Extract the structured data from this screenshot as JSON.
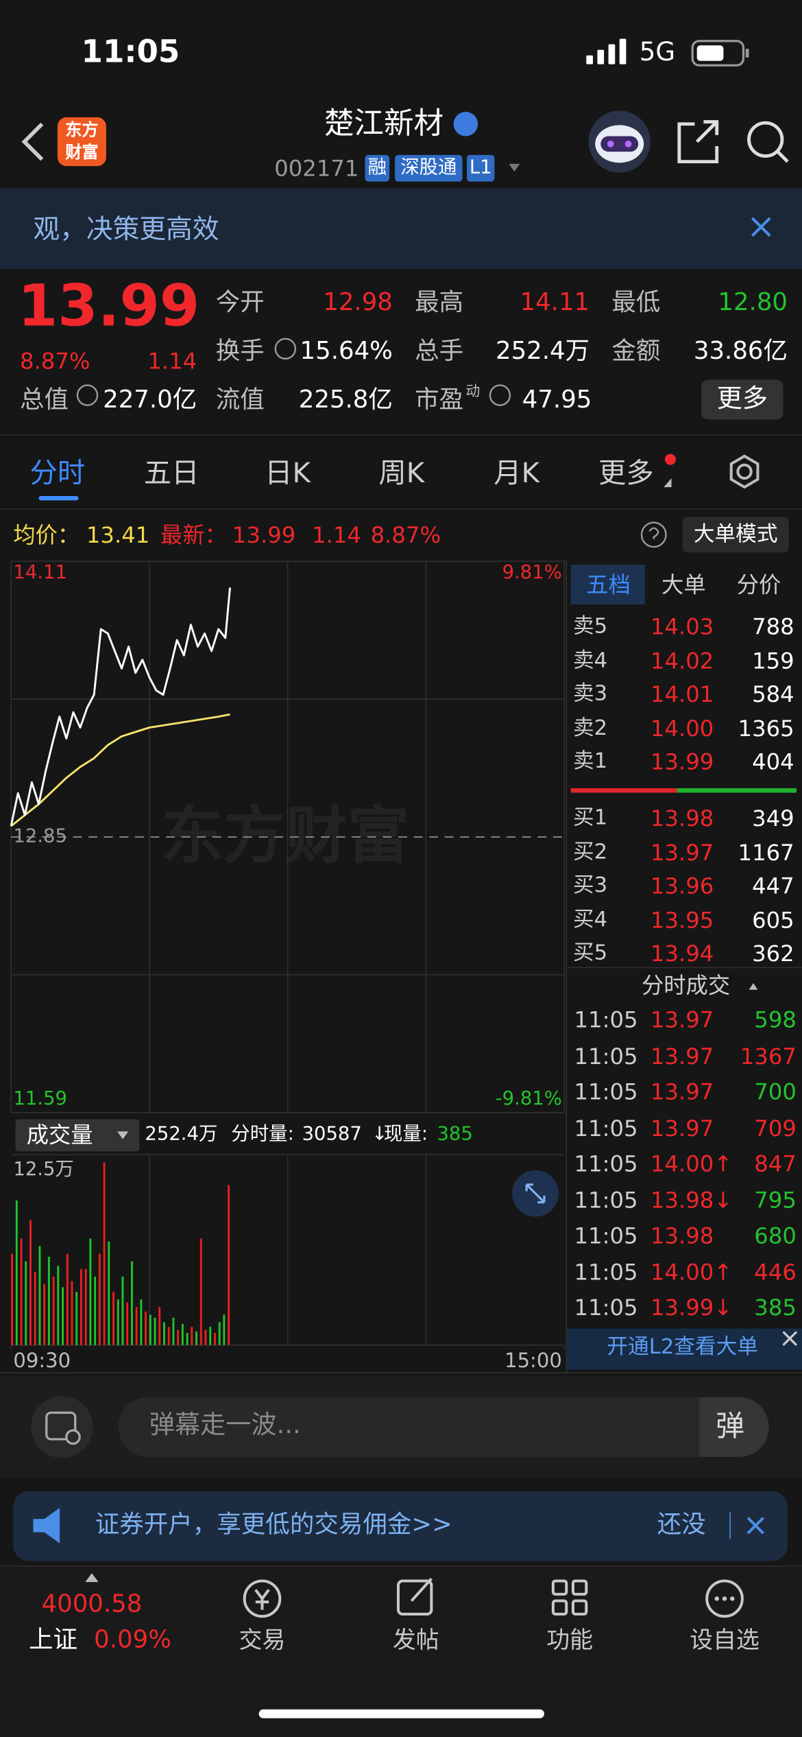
{
  "status_bar": {
    "time": "11:05",
    "network": "5G"
  },
  "header": {
    "logo_lines": [
      "东方",
      "财富"
    ],
    "title": "楚江新材",
    "code": "002171",
    "badges": [
      "融",
      "深股通",
      "L1"
    ]
  },
  "banner": {
    "text": "观，决策更高效"
  },
  "quote": {
    "price": "13.99",
    "change_pct": "8.87%",
    "change": "1.14",
    "fields": [
      {
        "label": "今开",
        "value": "12.98",
        "color": "#f0272b"
      },
      {
        "label": "最高",
        "value": "14.11",
        "color": "#f0272b"
      },
      {
        "label": "最低",
        "value": "12.80",
        "color": "#22c42d"
      },
      {
        "label": "换手",
        "value": "15.64%",
        "color": "#ffffff"
      },
      {
        "label": "总手",
        "value": "252.4万",
        "color": "#ffffff"
      },
      {
        "label": "金额",
        "value": "33.86亿",
        "color": "#ffffff"
      },
      {
        "label": "总值",
        "value": "227.0亿",
        "color": "#ffffff"
      },
      {
        "label": "流值",
        "value": "225.8亿",
        "color": "#ffffff"
      }
    ],
    "pe_label": "市盈",
    "pe_sup": "动",
    "pe_value": "47.95",
    "more": "更多"
  },
  "tabs": [
    "分时",
    "五日",
    "日K",
    "周K",
    "月K",
    "更多"
  ],
  "chart_info": {
    "avg": "13.41",
    "last": "13.99",
    "change": "1.14",
    "change_pct": "8.87%",
    "mode_button": "大单模式"
  },
  "chart_data": [
    {
      "type": "line",
      "watermark": "东方财富",
      "grid": true,
      "xlim": [
        0,
        240
      ],
      "ylim": [
        11.59,
        14.11
      ],
      "yticks": [
        14.11,
        12.85,
        11.59
      ],
      "y2lim": [
        -9.81,
        9.81
      ],
      "y2ticks": [
        {
          "value": 9.81,
          "label": "9.81%"
        },
        {
          "value": -9.81,
          "label": "-9.81%"
        }
      ],
      "series": [
        {
          "name": "最新：",
          "color": "#ffffff",
          "x": [
            0,
            3,
            6,
            9,
            12,
            15,
            18,
            21,
            24,
            27,
            30,
            33,
            36,
            39,
            42,
            45,
            48,
            51,
            54,
            57,
            60,
            63,
            66,
            69,
            72,
            75,
            78,
            81,
            84,
            87,
            90,
            93,
            95
          ],
          "values": [
            12.9,
            13.05,
            12.95,
            13.1,
            13.0,
            13.15,
            13.28,
            13.4,
            13.3,
            13.42,
            13.35,
            13.44,
            13.5,
            13.8,
            13.78,
            13.7,
            13.62,
            13.72,
            13.6,
            13.66,
            13.58,
            13.52,
            13.5,
            13.62,
            13.75,
            13.68,
            13.82,
            13.72,
            13.78,
            13.7,
            13.8,
            13.76,
            13.99
          ]
        },
        {
          "name": "均价：",
          "color": "#f5e36b",
          "x": [
            0,
            6,
            12,
            18,
            24,
            30,
            36,
            42,
            48,
            54,
            60,
            66,
            72,
            78,
            84,
            90,
            95
          ],
          "values": [
            12.9,
            12.95,
            13.0,
            13.06,
            13.12,
            13.17,
            13.21,
            13.27,
            13.31,
            13.33,
            13.35,
            13.36,
            13.37,
            13.38,
            13.39,
            13.4,
            13.41
          ]
        }
      ]
    },
    {
      "type": "bar",
      "xlim": [
        0,
        240
      ],
      "xticks": [
        {
          "value": 0,
          "label": "09:30"
        },
        {
          "value": 240,
          "label": "15:00"
        }
      ],
      "ylim": [
        0,
        125000
      ],
      "yticks": [
        {
          "value": 125000,
          "label": "12.5万"
        }
      ],
      "x": [
        0,
        2,
        4,
        6,
        8,
        10,
        12,
        14,
        16,
        18,
        20,
        22,
        24,
        26,
        28,
        30,
        32,
        34,
        36,
        38,
        40,
        42,
        44,
        46,
        48,
        50,
        52,
        54,
        56,
        58,
        60,
        62,
        64,
        66,
        68,
        70,
        72,
        74,
        76,
        78,
        80,
        82,
        84,
        86,
        88,
        90,
        92,
        94
      ],
      "values": [
        60000,
        95000,
        70000,
        55000,
        82000,
        48000,
        65000,
        40000,
        58000,
        45000,
        52000,
        38000,
        60000,
        42000,
        35000,
        50000,
        50000,
        70000,
        45000,
        60000,
        120000,
        68000,
        35000,
        30000,
        45000,
        28000,
        55000,
        25000,
        30000,
        22000,
        20000,
        18000,
        25000,
        15000,
        12000,
        18000,
        10000,
        14000,
        8000,
        12000,
        9000,
        70000,
        10000,
        12000,
        8000,
        15000,
        20000,
        105000
      ],
      "colors": [
        "#ea1e22",
        "#20c42a",
        "#ea1e22",
        "#20c42a",
        "#ea1e22",
        "#ea1e22",
        "#20c42a",
        "#ea1e22",
        "#20c42a",
        "#ea1e22",
        "#20c42a",
        "#20c42a",
        "#ea1e22",
        "#ea1e22",
        "#20c42a",
        "#ea1e22",
        "#ea1e22",
        "#20c42a",
        "#20c42a",
        "#ea1e22",
        "#ea1e22",
        "#20c42a",
        "#ea1e22",
        "#20c42a",
        "#20c42a",
        "#ea1e22",
        "#20c42a",
        "#ea1e22",
        "#20c42a",
        "#ea1e22",
        "#20c42a",
        "#20c42a",
        "#ea1e22",
        "#20c42a",
        "#ea1e22",
        "#20c42a",
        "#ea1e22",
        "#20c42a",
        "#20c42a",
        "#ea1e22",
        "#20c42a",
        "#ea1e22",
        "#ea1e22",
        "#20c42a",
        "#ea1e22",
        "#20c42a",
        "#20c42a",
        "#ea1e22"
      ]
    }
  ],
  "volume_info": {
    "selector": "成交量",
    "total": "252.4万",
    "minute_label": "分时量:",
    "minute_volume": 30587,
    "arrow": "↓",
    "current_label": "现量:",
    "current": 385
  },
  "order_book": {
    "tabs": [
      "五档",
      "大单",
      "分价"
    ],
    "asks": [
      {
        "label": "卖5",
        "price": "14.03",
        "qty": 788
      },
      {
        "label": "卖4",
        "price": "14.02",
        "qty": 159
      },
      {
        "label": "卖3",
        "price": "14.01",
        "qty": 584
      },
      {
        "label": "卖2",
        "price": "14.00",
        "qty": 1365
      },
      {
        "label": "卖1",
        "price": "13.99",
        "qty": 404
      }
    ],
    "bids": [
      {
        "label": "买1",
        "price": "13.98",
        "qty": 349
      },
      {
        "label": "买2",
        "price": "13.97",
        "qty": 1167
      },
      {
        "label": "买3",
        "price": "13.96",
        "qty": 447
      },
      {
        "label": "买4",
        "price": "13.95",
        "qty": 605
      },
      {
        "label": "买5",
        "price": "13.94",
        "qty": 362
      }
    ]
  },
  "trades": {
    "title": "分时成交",
    "l2_link": "开通L2查看大单",
    "rows": [
      {
        "time": "11:05",
        "price": "13.97",
        "qty": 598,
        "color": "#22c42d"
      },
      {
        "time": "11:05",
        "price": "13.97",
        "qty": 1367,
        "color": "#f0272b"
      },
      {
        "time": "11:05",
        "price": "13.97",
        "qty": 700,
        "color": "#22c42d"
      },
      {
        "time": "11:05",
        "price": "13.97",
        "qty": 709,
        "color": "#f0272b"
      },
      {
        "time": "11:05",
        "price": "14.00↑",
        "qty": 847,
        "color": "#f0272b"
      },
      {
        "time": "11:05",
        "price": "13.98↓",
        "qty": 795,
        "color": "#22c42d"
      },
      {
        "time": "11:05",
        "price": "13.98",
        "qty": 680,
        "color": "#22c42d"
      },
      {
        "time": "11:05",
        "price": "14.00↑",
        "qty": 446,
        "color": "#f0272b"
      },
      {
        "time": "11:05",
        "price": "13.99↓",
        "qty": 385,
        "color": "#22c42d"
      }
    ]
  },
  "comment": {
    "placeholder": "弹幕走一波...",
    "button": "弹"
  },
  "ad": {
    "text": "证券开户，享更低的交易佣金>>",
    "side": "还没"
  },
  "bottom_bar": {
    "index_value": "4000.58",
    "index_name": "上证",
    "index_change": "0.09%",
    "nav": [
      "交易",
      "发帖",
      "功能",
      "设自选"
    ]
  }
}
